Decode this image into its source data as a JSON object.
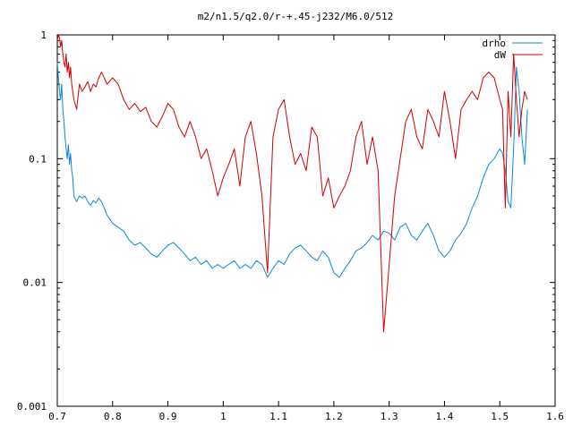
{
  "chart_data": {
    "type": "line",
    "title": "m2/n1.5/q2.0/r-+.45-j232/M6.0/512",
    "xlabel": "",
    "ylabel": "",
    "xlim": [
      0.7,
      1.6
    ],
    "ylim": [
      0.001,
      1
    ],
    "yscale": "log",
    "grid": false,
    "legend_position": "top-right",
    "x_ticks": [
      {
        "value": 0.7,
        "label": "0.7"
      },
      {
        "value": 0.8,
        "label": "0.8"
      },
      {
        "value": 0.9,
        "label": "0.9"
      },
      {
        "value": 1.0,
        "label": "1"
      },
      {
        "value": 1.1,
        "label": "1.1"
      },
      {
        "value": 1.2,
        "label": "1.2"
      },
      {
        "value": 1.3,
        "label": "1.3"
      },
      {
        "value": 1.4,
        "label": "1.4"
      },
      {
        "value": 1.5,
        "label": "1.5"
      },
      {
        "value": 1.6,
        "label": "1.6"
      }
    ],
    "y_ticks": [
      {
        "value": 0.001,
        "label": "0.001"
      },
      {
        "value": 0.01,
        "label": "0.01"
      },
      {
        "value": 0.1,
        "label": "0.1"
      },
      {
        "value": 1,
        "label": "1"
      }
    ],
    "series": [
      {
        "name": "drho",
        "color": "#0a8ad8",
        "x": [
          0.7,
          0.702,
          0.704,
          0.706,
          0.708,
          0.71,
          0.712,
          0.714,
          0.716,
          0.718,
          0.72,
          0.722,
          0.724,
          0.726,
          0.728,
          0.73,
          0.735,
          0.74,
          0.745,
          0.75,
          0.755,
          0.76,
          0.765,
          0.77,
          0.775,
          0.78,
          0.79,
          0.8,
          0.81,
          0.82,
          0.83,
          0.84,
          0.85,
          0.86,
          0.87,
          0.88,
          0.89,
          0.9,
          0.91,
          0.92,
          0.93,
          0.94,
          0.95,
          0.96,
          0.97,
          0.98,
          0.99,
          1.0,
          1.01,
          1.02,
          1.03,
          1.04,
          1.05,
          1.06,
          1.07,
          1.08,
          1.09,
          1.1,
          1.11,
          1.12,
          1.13,
          1.14,
          1.15,
          1.16,
          1.17,
          1.18,
          1.19,
          1.2,
          1.21,
          1.22,
          1.23,
          1.24,
          1.25,
          1.26,
          1.27,
          1.28,
          1.29,
          1.3,
          1.31,
          1.32,
          1.33,
          1.34,
          1.35,
          1.36,
          1.37,
          1.38,
          1.39,
          1.4,
          1.41,
          1.42,
          1.43,
          1.44,
          1.45,
          1.46,
          1.47,
          1.48,
          1.49,
          1.5,
          1.505,
          1.51,
          1.515,
          1.52,
          1.525,
          1.53,
          1.535,
          1.54,
          1.545,
          1.55
        ],
        "y": [
          0.6,
          0.45,
          0.35,
          0.3,
          0.4,
          0.25,
          0.2,
          0.15,
          0.12,
          0.1,
          0.13,
          0.09,
          0.11,
          0.08,
          0.07,
          0.05,
          0.045,
          0.05,
          0.048,
          0.05,
          0.045,
          0.042,
          0.046,
          0.044,
          0.048,
          0.045,
          0.035,
          0.03,
          0.028,
          0.026,
          0.022,
          0.02,
          0.021,
          0.019,
          0.017,
          0.016,
          0.018,
          0.02,
          0.021,
          0.019,
          0.017,
          0.015,
          0.016,
          0.014,
          0.015,
          0.013,
          0.014,
          0.013,
          0.014,
          0.015,
          0.013,
          0.014,
          0.013,
          0.015,
          0.014,
          0.011,
          0.013,
          0.015,
          0.014,
          0.017,
          0.019,
          0.02,
          0.018,
          0.016,
          0.015,
          0.018,
          0.016,
          0.012,
          0.011,
          0.013,
          0.015,
          0.018,
          0.019,
          0.021,
          0.024,
          0.022,
          0.026,
          0.025,
          0.022,
          0.028,
          0.03,
          0.024,
          0.022,
          0.026,
          0.03,
          0.024,
          0.018,
          0.016,
          0.018,
          0.022,
          0.025,
          0.03,
          0.04,
          0.05,
          0.07,
          0.09,
          0.1,
          0.12,
          0.11,
          0.08,
          0.045,
          0.04,
          0.12,
          0.55,
          0.35,
          0.15,
          0.09,
          0.25
        ]
      },
      {
        "name": "dW",
        "color": "#d00000",
        "x": [
          0.7,
          0.702,
          0.704,
          0.706,
          0.708,
          0.71,
          0.712,
          0.714,
          0.716,
          0.718,
          0.72,
          0.722,
          0.724,
          0.726,
          0.728,
          0.73,
          0.735,
          0.74,
          0.745,
          0.75,
          0.755,
          0.76,
          0.765,
          0.77,
          0.775,
          0.78,
          0.79,
          0.8,
          0.81,
          0.82,
          0.83,
          0.84,
          0.85,
          0.86,
          0.87,
          0.88,
          0.89,
          0.9,
          0.91,
          0.92,
          0.93,
          0.94,
          0.95,
          0.96,
          0.97,
          0.98,
          0.99,
          1.0,
          1.01,
          1.02,
          1.03,
          1.04,
          1.05,
          1.06,
          1.07,
          1.08,
          1.09,
          1.1,
          1.11,
          1.12,
          1.13,
          1.14,
          1.15,
          1.16,
          1.17,
          1.18,
          1.19,
          1.2,
          1.21,
          1.22,
          1.23,
          1.24,
          1.25,
          1.26,
          1.27,
          1.28,
          1.29,
          1.3,
          1.31,
          1.32,
          1.33,
          1.34,
          1.35,
          1.36,
          1.37,
          1.38,
          1.39,
          1.4,
          1.41,
          1.42,
          1.43,
          1.44,
          1.45,
          1.46,
          1.47,
          1.48,
          1.49,
          1.5,
          1.505,
          1.51,
          1.515,
          1.52,
          1.525,
          1.53,
          1.535,
          1.54,
          1.545,
          1.55
        ],
        "y": [
          0.9,
          1.0,
          0.95,
          0.8,
          0.9,
          0.7,
          0.6,
          0.55,
          0.7,
          0.5,
          0.6,
          0.45,
          0.55,
          0.4,
          0.35,
          0.3,
          0.25,
          0.4,
          0.35,
          0.38,
          0.42,
          0.35,
          0.4,
          0.38,
          0.45,
          0.5,
          0.4,
          0.45,
          0.4,
          0.3,
          0.25,
          0.28,
          0.24,
          0.26,
          0.2,
          0.18,
          0.22,
          0.28,
          0.25,
          0.18,
          0.15,
          0.2,
          0.15,
          0.1,
          0.12,
          0.08,
          0.05,
          0.07,
          0.09,
          0.12,
          0.06,
          0.15,
          0.2,
          0.11,
          0.05,
          0.012,
          0.15,
          0.25,
          0.3,
          0.15,
          0.09,
          0.11,
          0.08,
          0.18,
          0.15,
          0.05,
          0.07,
          0.04,
          0.05,
          0.06,
          0.08,
          0.15,
          0.2,
          0.09,
          0.15,
          0.08,
          0.004,
          0.014,
          0.05,
          0.1,
          0.2,
          0.25,
          0.15,
          0.12,
          0.25,
          0.2,
          0.15,
          0.35,
          0.2,
          0.1,
          0.25,
          0.3,
          0.35,
          0.3,
          0.45,
          0.5,
          0.45,
          0.3,
          0.25,
          0.04,
          0.35,
          0.15,
          0.7,
          0.3,
          0.15,
          0.25,
          0.35,
          0.3
        ]
      }
    ]
  }
}
